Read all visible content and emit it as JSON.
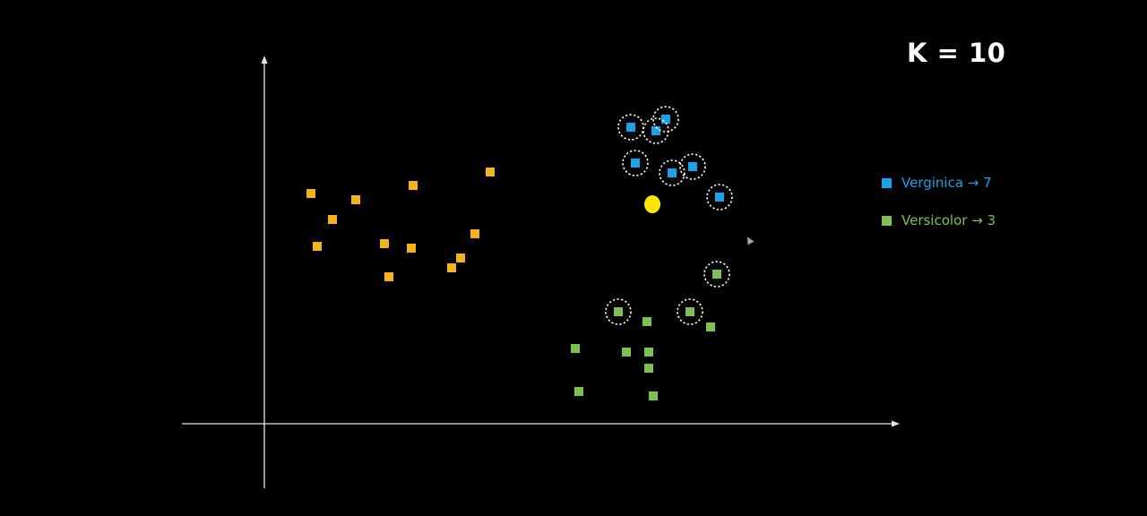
{
  "k_label": "K = 10",
  "colors": {
    "background": "#000000",
    "axis": "#e6e6e6",
    "setosa": "#f5b21b",
    "verginica": "#1aa3e8",
    "versicolor": "#7dc14f",
    "query": "#ffe600",
    "neighbor_ring": "#ffffff"
  },
  "legend": {
    "items": [
      {
        "label": "Verginica → 7",
        "color": "#1aa3e8"
      },
      {
        "label": "Versicolor → 3",
        "color": "#7dc14f"
      }
    ]
  },
  "chart_data": {
    "type": "scatter",
    "title": "",
    "xlabel": "",
    "ylabel": "",
    "xlim": [
      0,
      70
    ],
    "ylim": [
      0,
      40
    ],
    "grid": false,
    "legend_placement": "right",
    "query_point": {
      "x": 43.3,
      "y": 24.5
    },
    "series": [
      {
        "key": "setosa",
        "color": "#f5b21b",
        "points": [
          {
            "x": 5.2,
            "y": 25.7
          },
          {
            "x": 7.6,
            "y": 22.8
          },
          {
            "x": 5.9,
            "y": 19.8
          },
          {
            "x": 10.2,
            "y": 25.0
          },
          {
            "x": 13.4,
            "y": 20.1
          },
          {
            "x": 13.9,
            "y": 16.4
          },
          {
            "x": 16.6,
            "y": 26.6
          },
          {
            "x": 16.4,
            "y": 19.6
          },
          {
            "x": 20.9,
            "y": 17.4
          },
          {
            "x": 21.9,
            "y": 18.5
          },
          {
            "x": 23.5,
            "y": 21.2
          },
          {
            "x": 25.2,
            "y": 28.1
          }
        ]
      },
      {
        "key": "verginica",
        "color": "#1aa3e8",
        "points": [
          {
            "x": 40.9,
            "y": 33.1,
            "neighbor": true
          },
          {
            "x": 43.7,
            "y": 32.7,
            "neighbor": true
          },
          {
            "x": 44.8,
            "y": 34.0,
            "neighbor": true
          },
          {
            "x": 41.4,
            "y": 29.1,
            "neighbor": true
          },
          {
            "x": 45.5,
            "y": 28.0,
            "neighbor": true
          },
          {
            "x": 47.8,
            "y": 28.7,
            "neighbor": true
          },
          {
            "x": 50.8,
            "y": 25.3,
            "neighbor": true
          }
        ]
      },
      {
        "key": "versicolor",
        "color": "#7dc14f",
        "points": [
          {
            "x": 50.5,
            "y": 16.7,
            "neighbor": true
          },
          {
            "x": 39.5,
            "y": 12.5,
            "neighbor": true
          },
          {
            "x": 47.5,
            "y": 12.5,
            "neighbor": true
          },
          {
            "x": 42.7,
            "y": 11.4
          },
          {
            "x": 49.8,
            "y": 10.8
          },
          {
            "x": 34.7,
            "y": 8.4
          },
          {
            "x": 40.4,
            "y": 8.0
          },
          {
            "x": 42.9,
            "y": 8.0
          },
          {
            "x": 42.9,
            "y": 6.2
          },
          {
            "x": 35.1,
            "y": 3.6
          },
          {
            "x": 43.4,
            "y": 3.1
          }
        ]
      }
    ]
  }
}
